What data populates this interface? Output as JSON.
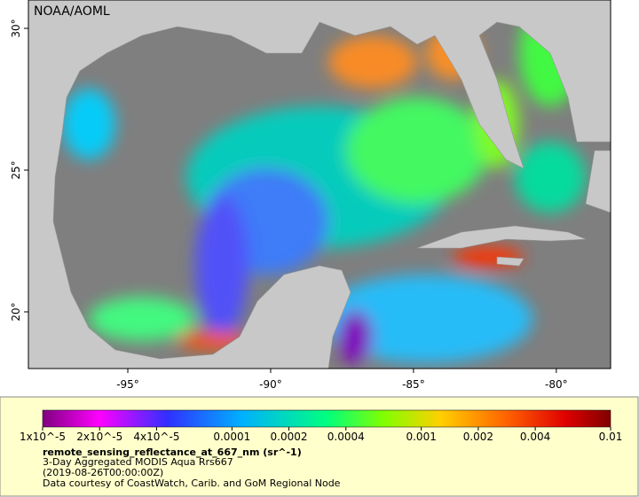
{
  "map": {
    "credit": "NOAA/AOML",
    "xlim": [
      -98.48,
      -78.1
    ],
    "ylim": [
      18.0,
      31.0
    ],
    "xticks": [
      {
        "value": -95,
        "label": "-95°"
      },
      {
        "value": -90,
        "label": "-90°"
      },
      {
        "value": -85,
        "label": "-85°"
      },
      {
        "value": -80,
        "label": "-80°"
      }
    ],
    "yticks": [
      {
        "value": 20,
        "label": "20°"
      },
      {
        "value": 25,
        "label": "25°"
      },
      {
        "value": 30,
        "label": "30°"
      }
    ]
  },
  "colorbar": {
    "log_scale": true,
    "lim": [
      1e-05,
      0.01
    ],
    "ticks": [
      {
        "value": 1e-05,
        "label": "1x10^-5"
      },
      {
        "value": 2e-05,
        "label": "2x10^-5"
      },
      {
        "value": 4e-05,
        "label": "4x10^-5"
      },
      0.0001,
      0.0002,
      0.0004,
      0.001,
      0.002,
      0.004,
      0.01
    ],
    "variable": "remote_sensing_reflectance_at_667_nm (sr^-1)",
    "description": "3-Day Aggregated MODIS Aqua Rrs667",
    "time": "(2019-08-26T00:00:00Z)",
    "source": "Data courtesy of CoastWatch, Carib. and GoM Regional Node"
  }
}
